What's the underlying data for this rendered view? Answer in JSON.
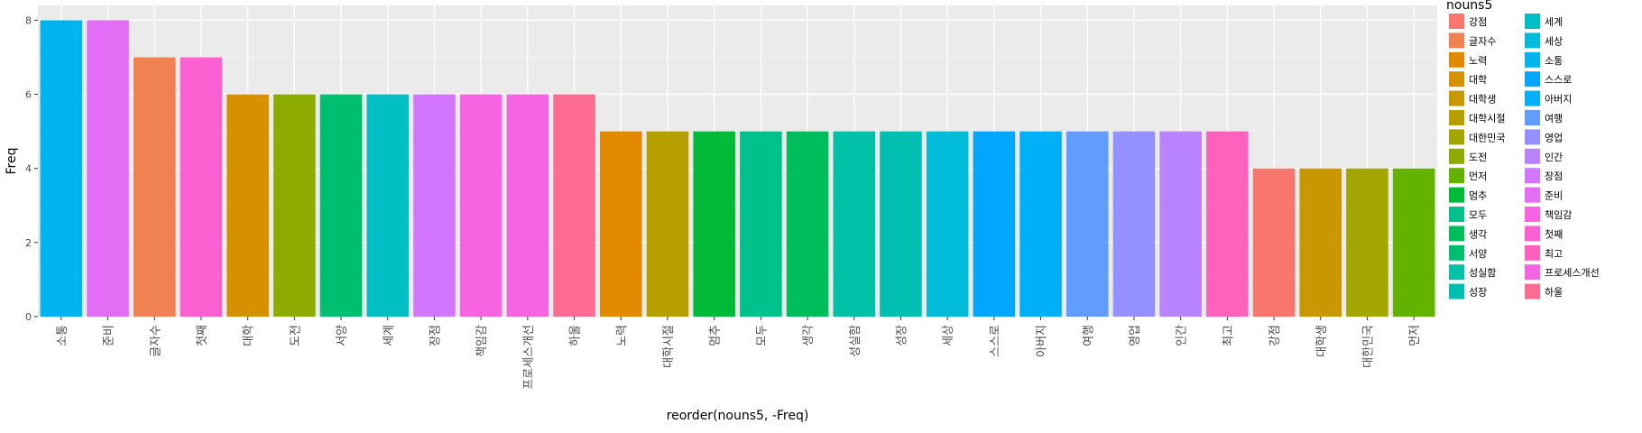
{
  "chart_data": {
    "type": "bar",
    "title": "",
    "xlabel": "reorder(nouns5, -Freq)",
    "ylabel": "Freq",
    "ylim": [
      0,
      8.4
    ],
    "yticks": [
      0,
      2,
      4,
      6,
      8
    ],
    "grid": true,
    "legend_position": "right",
    "categories": [
      "소통",
      "준비",
      "글자수",
      "첫째",
      "대학",
      "도전",
      "서양",
      "세계",
      "장점",
      "책임감",
      "프로세스개선",
      "하울",
      "노력",
      "대학시절",
      "멈추",
      "모두",
      "생각",
      "성실함",
      "성장",
      "세상",
      "스스로",
      "아버지",
      "여행",
      "영업",
      "인간",
      "최고",
      "강점",
      "대학생",
      "대한민국",
      "먼저"
    ],
    "values": [
      8,
      8,
      7,
      7,
      6,
      6,
      6,
      6,
      6,
      6,
      6,
      6,
      5,
      5,
      5,
      5,
      5,
      5,
      5,
      5,
      5,
      5,
      5,
      5,
      5,
      5,
      4,
      4,
      4,
      4
    ],
    "bar_colors": [
      "#00B4EF",
      "#E46DF6",
      "#F08150",
      "#FD61D1",
      "#D69100",
      "#8EAB00",
      "#00BE70",
      "#00BFC4",
      "#D376FF",
      "#F763E0",
      "#F564E3",
      "#FF6C91",
      "#E38900",
      "#B79F00",
      "#00BA38",
      "#00C08B",
      "#00BD5C",
      "#00C1A7",
      "#00BFB0",
      "#00BBDA",
      "#00A6FF",
      "#00B0F6",
      "#619CFF",
      "#9590FF",
      "#B983FF",
      "#FF62BC",
      "#F8766D",
      "#C99800",
      "#A3A500",
      "#64B200"
    ]
  },
  "legend": {
    "title": "nouns5",
    "items": [
      {
        "label": "강점",
        "color": "#F8766D"
      },
      {
        "label": "글자수",
        "color": "#F08150"
      },
      {
        "label": "노력",
        "color": "#E38900"
      },
      {
        "label": "대학",
        "color": "#D69100"
      },
      {
        "label": "대학생",
        "color": "#C99800"
      },
      {
        "label": "대학시절",
        "color": "#B79F00"
      },
      {
        "label": "대한민국",
        "color": "#A3A500"
      },
      {
        "label": "도전",
        "color": "#8EAB00"
      },
      {
        "label": "먼저",
        "color": "#64B200"
      },
      {
        "label": "멈추",
        "color": "#00BA38"
      },
      {
        "label": "모두",
        "color": "#00C08B"
      },
      {
        "label": "생각",
        "color": "#00BD5C"
      },
      {
        "label": "서양",
        "color": "#00BE70"
      },
      {
        "label": "성실함",
        "color": "#00C1A7"
      },
      {
        "label": "성장",
        "color": "#00BFB0"
      },
      {
        "label": "세계",
        "color": "#00BFC4"
      },
      {
        "label": "세상",
        "color": "#00BBDA"
      },
      {
        "label": "소통",
        "color": "#00B4EF"
      },
      {
        "label": "스스로",
        "color": "#00A6FF"
      },
      {
        "label": "아버지",
        "color": "#00B0F6"
      },
      {
        "label": "여행",
        "color": "#619CFF"
      },
      {
        "label": "영업",
        "color": "#9590FF"
      },
      {
        "label": "인간",
        "color": "#B983FF"
      },
      {
        "label": "장점",
        "color": "#D376FF"
      },
      {
        "label": "준비",
        "color": "#E46DF6"
      },
      {
        "label": "책임감",
        "color": "#F763E0"
      },
      {
        "label": "첫째",
        "color": "#FD61D1"
      },
      {
        "label": "최고",
        "color": "#FF62BC"
      },
      {
        "label": "프로세스개선",
        "color": "#F564E3"
      },
      {
        "label": "하울",
        "color": "#FF6C91"
      }
    ]
  },
  "colors": {
    "panel_background": "#EBEBEB",
    "grid_major": "#FFFFFF",
    "axis_text": "#4D4D4D",
    "title_text": "#000000"
  }
}
